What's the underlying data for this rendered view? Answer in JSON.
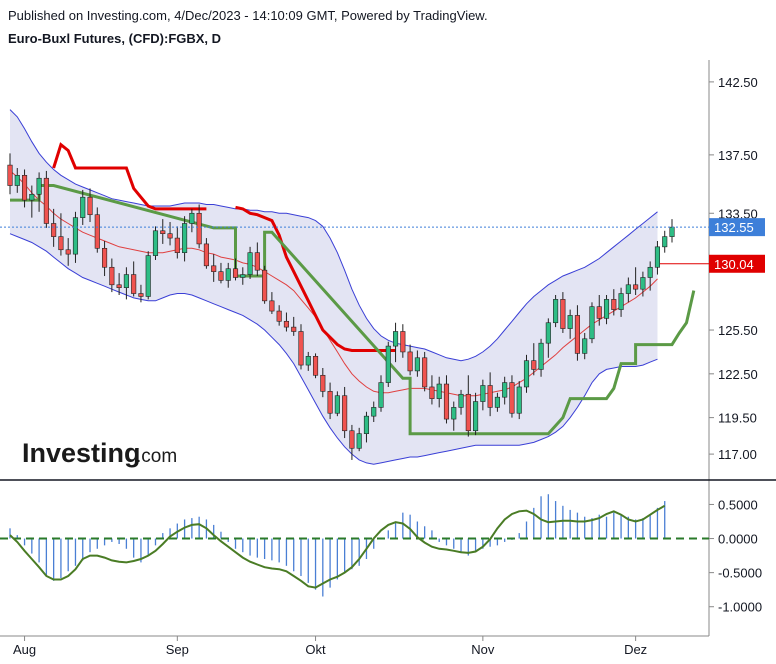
{
  "header": {
    "published": "Published on Investing.com, 4/Dec/2023 - 14:10:09 GMT, Powered by TradingView.",
    "symbol": "Euro-Buxl Futures, (CFD):FGBX, D"
  },
  "logo": {
    "word": "Investing",
    "suffix": ".com"
  },
  "colors": {
    "up": "#2ebd85",
    "down": "#f05350",
    "band_fill": "#e3e4f3",
    "band_line": "#3a3fd6",
    "mid_line": "#e04040",
    "red_step": "#e00000",
    "green_step": "#5b9a46",
    "osc_bar": "#4a7fd4",
    "osc_line": "#4a7c25",
    "zero_line": "#2a7a2a",
    "last_price_bg": "#3d7fd9",
    "ref_price_bg": "#e00000"
  },
  "chart_data": [
    {
      "type": "candlestick",
      "title": "Euro-Buxl Futures, (CFD):FGBX, D",
      "x_ticks": [
        "Aug",
        "Sep",
        "Okt",
        "Nov",
        "Dez"
      ],
      "x_tick_index": [
        2,
        23,
        42,
        65,
        86
      ],
      "y_ticks": [
        "142.50",
        "137.50",
        "133.50",
        "125.50",
        "122.50",
        "119.50",
        "117.00"
      ],
      "ylim": [
        115.5,
        144.0
      ],
      "last_price": "132.55",
      "ref_price": "130.04",
      "candles_ohlc": [
        [
          136.8,
          137.6,
          134.8,
          135.4
        ],
        [
          135.4,
          136.6,
          134.9,
          136.1
        ],
        [
          136.1,
          136.5,
          133.9,
          134.4
        ],
        [
          134.4,
          135.4,
          133.2,
          134.8
        ],
        [
          134.8,
          136.3,
          133.6,
          135.9
        ],
        [
          135.9,
          136.4,
          132.5,
          132.8
        ],
        [
          132.8,
          133.8,
          131.2,
          131.9
        ],
        [
          131.9,
          133.5,
          130.6,
          131.0
        ],
        [
          131.0,
          131.8,
          129.9,
          130.7
        ],
        [
          130.7,
          133.6,
          130.1,
          133.2
        ],
        [
          133.2,
          135.1,
          132.7,
          134.6
        ],
        [
          134.6,
          135.2,
          132.9,
          133.4
        ],
        [
          133.4,
          133.9,
          130.8,
          131.1
        ],
        [
          131.1,
          131.6,
          129.2,
          129.8
        ],
        [
          129.8,
          130.4,
          128.1,
          128.6
        ],
        [
          128.6,
          129.4,
          127.9,
          128.4
        ],
        [
          128.4,
          129.8,
          127.6,
          129.3
        ],
        [
          129.3,
          130.2,
          127.8,
          128.0
        ],
        [
          128.0,
          128.6,
          127.4,
          127.8
        ],
        [
          127.8,
          130.9,
          127.6,
          130.6
        ],
        [
          130.6,
          132.6,
          130.3,
          132.3
        ],
        [
          132.3,
          133.1,
          131.4,
          132.1
        ],
        [
          132.1,
          132.9,
          131.3,
          131.8
        ],
        [
          131.8,
          132.6,
          130.4,
          130.8
        ],
        [
          130.8,
          133.3,
          130.2,
          132.8
        ],
        [
          132.8,
          133.8,
          132.2,
          133.5
        ],
        [
          133.5,
          134.1,
          131.1,
          131.4
        ],
        [
          131.4,
          131.8,
          129.7,
          129.9
        ],
        [
          129.9,
          130.7,
          128.8,
          129.5
        ],
        [
          129.5,
          130.1,
          128.7,
          128.9
        ],
        [
          128.9,
          130.1,
          128.4,
          129.7
        ],
        [
          129.7,
          130.4,
          128.9,
          129.1
        ],
        [
          129.1,
          129.8,
          128.6,
          129.3
        ],
        [
          129.3,
          131.2,
          129.0,
          130.8
        ],
        [
          130.8,
          131.5,
          129.2,
          129.6
        ],
        [
          129.6,
          129.9,
          127.3,
          127.5
        ],
        [
          127.5,
          128.1,
          126.6,
          126.8
        ],
        [
          126.8,
          127.2,
          125.8,
          126.1
        ],
        [
          126.1,
          126.7,
          125.4,
          125.7
        ],
        [
          125.7,
          126.4,
          125.1,
          125.4
        ],
        [
          125.4,
          125.9,
          122.8,
          123.1
        ],
        [
          123.1,
          124.0,
          122.7,
          123.7
        ],
        [
          123.7,
          123.9,
          122.2,
          122.4
        ],
        [
          122.4,
          122.9,
          120.9,
          121.3
        ],
        [
          121.3,
          121.9,
          119.4,
          119.8
        ],
        [
          119.8,
          121.3,
          119.6,
          121.0
        ],
        [
          121.0,
          121.6,
          118.1,
          118.6
        ],
        [
          118.6,
          119.0,
          116.6,
          117.4
        ],
        [
          117.4,
          118.8,
          117.2,
          118.4
        ],
        [
          118.4,
          119.9,
          117.8,
          119.6
        ],
        [
          119.6,
          120.6,
          119.2,
          120.2
        ],
        [
          120.2,
          122.4,
          119.9,
          121.9
        ],
        [
          121.9,
          124.7,
          121.6,
          124.4
        ],
        [
          124.4,
          126.0,
          123.3,
          125.4
        ],
        [
          125.4,
          125.9,
          123.6,
          124.0
        ],
        [
          124.0,
          124.5,
          122.4,
          122.7
        ],
        [
          122.7,
          124.1,
          122.3,
          123.6
        ],
        [
          123.6,
          124.0,
          121.3,
          121.6
        ],
        [
          121.6,
          122.4,
          120.4,
          120.8
        ],
        [
          120.8,
          122.3,
          120.2,
          121.8
        ],
        [
          121.8,
          122.4,
          119.1,
          119.4
        ],
        [
          119.4,
          120.6,
          118.6,
          120.2
        ],
        [
          120.2,
          121.4,
          119.7,
          121.1
        ],
        [
          121.1,
          122.4,
          118.2,
          118.6
        ],
        [
          118.6,
          121.2,
          118.3,
          120.6
        ],
        [
          120.6,
          122.1,
          120.0,
          121.7
        ],
        [
          121.7,
          122.6,
          119.6,
          120.2
        ],
        [
          120.2,
          121.2,
          119.9,
          120.9
        ],
        [
          120.9,
          122.3,
          120.4,
          121.9
        ],
        [
          121.9,
          122.4,
          119.5,
          119.8
        ],
        [
          119.8,
          122.0,
          119.4,
          121.6
        ],
        [
          121.6,
          123.8,
          121.2,
          123.4
        ],
        [
          123.4,
          124.6,
          122.4,
          122.8
        ],
        [
          122.8,
          124.9,
          122.3,
          124.6
        ],
        [
          124.6,
          126.3,
          123.6,
          126.0
        ],
        [
          126.0,
          127.9,
          125.7,
          127.6
        ],
        [
          127.6,
          128.1,
          125.3,
          125.6
        ],
        [
          125.6,
          126.9,
          124.9,
          126.5
        ],
        [
          126.5,
          127.2,
          123.4,
          123.9
        ],
        [
          123.9,
          125.3,
          123.5,
          124.9
        ],
        [
          124.9,
          127.4,
          124.6,
          127.1
        ],
        [
          127.1,
          127.9,
          125.8,
          126.3
        ],
        [
          126.3,
          127.9,
          125.9,
          127.6
        ],
        [
          127.6,
          128.3,
          126.5,
          126.9
        ],
        [
          126.9,
          128.4,
          126.4,
          128.0
        ],
        [
          128.0,
          129.1,
          127.4,
          128.6
        ],
        [
          128.6,
          129.8,
          127.9,
          128.3
        ],
        [
          128.3,
          129.5,
          127.8,
          129.1
        ],
        [
          129.1,
          130.2,
          128.2,
          129.8
        ],
        [
          129.8,
          131.6,
          129.3,
          131.2
        ],
        [
          131.2,
          132.3,
          130.8,
          131.9
        ],
        [
          131.9,
          133.1,
          131.5,
          132.55
        ]
      ],
      "bollinger_upper": [
        140.6,
        140.1,
        139.3,
        138.4,
        137.6,
        137.0,
        136.5,
        136.1,
        135.8,
        135.5,
        135.3,
        135.1,
        134.9,
        134.7,
        134.5,
        134.4,
        134.3,
        134.2,
        134.1,
        134.0,
        134.0,
        134.0,
        134.0,
        134.1,
        134.2,
        134.2,
        134.2,
        134.1,
        134.1,
        134.0,
        133.9,
        133.8,
        133.8,
        133.7,
        133.7,
        133.6,
        133.6,
        133.5,
        133.5,
        133.4,
        133.3,
        133.2,
        133.0,
        132.6,
        131.8,
        130.8,
        129.6,
        128.3,
        127.2,
        126.3,
        125.6,
        125.1,
        124.8,
        124.6,
        124.5,
        124.4,
        124.3,
        124.2,
        124.0,
        123.8,
        123.6,
        123.5,
        123.4,
        123.5,
        123.7,
        124.0,
        124.4,
        124.9,
        125.5,
        126.1,
        126.7,
        127.3,
        127.8,
        128.2,
        128.6,
        128.9,
        129.2,
        129.4,
        129.6,
        129.8,
        130.1,
        130.4,
        130.8,
        131.2,
        131.6,
        132.0,
        132.4,
        132.8,
        133.2,
        133.6
      ],
      "bollinger_lower": [
        132.1,
        131.9,
        131.7,
        131.5,
        131.2,
        130.9,
        130.5,
        130.1,
        129.7,
        129.4,
        129.1,
        128.9,
        128.7,
        128.5,
        128.3,
        128.1,
        127.9,
        127.7,
        127.6,
        127.5,
        127.5,
        127.7,
        127.9,
        128.0,
        128.0,
        127.9,
        127.7,
        127.5,
        127.3,
        127.1,
        126.9,
        126.7,
        126.5,
        126.2,
        125.9,
        125.5,
        125.0,
        124.5,
        123.9,
        123.2,
        122.3,
        121.4,
        120.5,
        119.6,
        118.8,
        118.1,
        117.5,
        117.0,
        116.6,
        116.4,
        116.3,
        116.4,
        116.5,
        116.6,
        116.7,
        116.8,
        116.8,
        116.9,
        117.0,
        117.1,
        117.2,
        117.3,
        117.4,
        117.5,
        117.6,
        117.6,
        117.6,
        117.6,
        117.6,
        117.6,
        117.6,
        117.7,
        117.8,
        118.0,
        118.2,
        118.5,
        118.9,
        119.5,
        120.2,
        121.0,
        121.9,
        122.5,
        122.8,
        122.9,
        123.0,
        123.0,
        123.0,
        123.1,
        123.3,
        123.5
      ],
      "bollinger_mid": [
        136.4,
        136.0,
        135.5,
        134.9,
        134.4,
        134.0,
        133.5,
        133.1,
        132.8,
        132.5,
        132.2,
        132.0,
        131.8,
        131.6,
        131.4,
        131.2,
        131.1,
        131.0,
        130.9,
        130.8,
        130.8,
        130.8,
        130.9,
        131.0,
        131.1,
        131.1,
        131.0,
        130.8,
        130.7,
        130.5,
        130.4,
        130.3,
        130.1,
        130.0,
        129.8,
        129.5,
        129.2,
        128.9,
        128.6,
        128.2,
        127.6,
        127.0,
        126.4,
        125.6,
        124.8,
        124.0,
        123.2,
        122.5,
        122.0,
        121.6,
        121.3,
        121.2,
        121.2,
        121.3,
        121.4,
        121.5,
        121.5,
        121.5,
        121.4,
        121.3,
        121.2,
        121.1,
        121.0,
        121.0,
        121.0,
        121.1,
        121.2,
        121.3,
        121.4,
        121.6,
        121.9,
        122.2,
        122.6,
        123.0,
        123.4,
        123.8,
        124.3,
        124.7,
        125.1,
        125.5,
        125.9,
        126.2,
        126.5,
        126.8,
        127.1,
        127.4,
        127.7,
        128.1,
        128.5,
        129.0
      ],
      "red_step": [
        null,
        null,
        null,
        null,
        null,
        null,
        136.6,
        138.2,
        137.8,
        136.6,
        136.6,
        136.6,
        136.6,
        136.6,
        136.6,
        136.6,
        136.6,
        135.2,
        134.6,
        134.0,
        133.8,
        133.8,
        133.8,
        133.8,
        133.8,
        133.8,
        133.8,
        133.8,
        null,
        null,
        null,
        133.9,
        133.8,
        133.5,
        133.4,
        133.2,
        133.0,
        132.0,
        130.5,
        129.5,
        128.5,
        127.5,
        126.5,
        125.5,
        125.0,
        124.5,
        124.2,
        124.1,
        124.1,
        124.1,
        124.1,
        124.1,
        124.1,
        124.1
      ],
      "green_step": [
        [
          0,
          134.4
        ],
        [
          4,
          134.4
        ],
        [
          4,
          135.4
        ],
        [
          6,
          135.4
        ],
        [
          28,
          132.5
        ],
        [
          31,
          132.5
        ],
        [
          31,
          129.2
        ],
        [
          35,
          129.2
        ],
        [
          35,
          132.2
        ],
        [
          36,
          132.2
        ],
        [
          54,
          122.2
        ],
        [
          55,
          122.2
        ],
        [
          55,
          118.4
        ],
        [
          74,
          118.4
        ],
        [
          76,
          119.5
        ],
        [
          77,
          120.8
        ],
        [
          82,
          120.8
        ],
        [
          83,
          121.5
        ],
        [
          84,
          123.2
        ],
        [
          86,
          123.2
        ],
        [
          86,
          124.5
        ],
        [
          91,
          124.5
        ],
        [
          92,
          125.3
        ],
        [
          93,
          126.0
        ],
        [
          94,
          128.2
        ]
      ]
    },
    {
      "type": "bar",
      "title": "",
      "y_ticks": [
        "0.5000",
        "0.0000",
        "-0.5000",
        "-1.0000"
      ],
      "ylim": [
        -1.4,
        0.8
      ],
      "histogram": [
        0.15,
        0.05,
        -0.1,
        -0.22,
        -0.35,
        -0.55,
        -0.62,
        -0.58,
        -0.48,
        -0.4,
        -0.32,
        -0.2,
        -0.15,
        -0.1,
        -0.05,
        -0.08,
        -0.15,
        -0.28,
        -0.35,
        -0.25,
        -0.1,
        0.08,
        0.15,
        0.22,
        0.28,
        0.3,
        0.32,
        0.28,
        0.2,
        0.1,
        -0.05,
        -0.15,
        -0.2,
        -0.25,
        -0.28,
        -0.3,
        -0.32,
        -0.35,
        -0.4,
        -0.48,
        -0.55,
        -0.65,
        -0.75,
        -0.85,
        -0.72,
        -0.6,
        -0.5,
        -0.45,
        -0.4,
        -0.3,
        -0.15,
        0.0,
        0.12,
        0.25,
        0.38,
        0.35,
        0.25,
        0.18,
        0.12,
        -0.05,
        -0.1,
        -0.15,
        -0.2,
        -0.25,
        -0.18,
        -0.15,
        -0.12,
        -0.1,
        -0.05,
        -0.02,
        0.08,
        0.25,
        0.45,
        0.62,
        0.65,
        0.55,
        0.48,
        0.42,
        0.38,
        0.32,
        0.3,
        0.35,
        0.32,
        0.38,
        0.34,
        0.32,
        0.28,
        0.3,
        0.35,
        0.45,
        0.55
      ],
      "signal": [
        0.05,
        -0.05,
        -0.18,
        -0.3,
        -0.42,
        -0.55,
        -0.6,
        -0.6,
        -0.55,
        -0.45,
        -0.3,
        -0.25,
        -0.25,
        -0.28,
        -0.32,
        -0.34,
        -0.35,
        -0.33,
        -0.3,
        -0.25,
        -0.18,
        -0.08,
        0.03,
        0.1,
        0.16,
        0.2,
        0.21,
        0.15,
        0.05,
        -0.04,
        -0.12,
        -0.2,
        -0.28,
        -0.34,
        -0.38,
        -0.42,
        -0.44,
        -0.45,
        -0.48,
        -0.55,
        -0.62,
        -0.7,
        -0.72,
        -0.66,
        -0.6,
        -0.56,
        -0.5,
        -0.42,
        -0.3,
        -0.15,
        0.0,
        0.12,
        0.2,
        0.24,
        0.22,
        0.14,
        0.02,
        -0.06,
        -0.12,
        -0.15,
        -0.16,
        -0.18,
        -0.2,
        -0.21,
        -0.19,
        -0.12,
        -0.01,
        0.15,
        0.28,
        0.36,
        0.4,
        0.41,
        0.36,
        0.28,
        0.24,
        0.25,
        0.26,
        0.26,
        0.25,
        0.25,
        0.27,
        0.3,
        0.36,
        0.4,
        0.35,
        0.28,
        0.25,
        0.28,
        0.35,
        0.42,
        0.48
      ]
    }
  ]
}
